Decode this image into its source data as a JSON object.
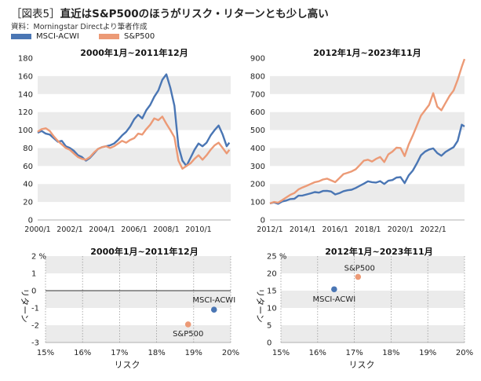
{
  "header": {
    "figure_tag": "［図表5］",
    "title": "直近はS&P500のほうがリスク・リターンとも少し高い",
    "source": "資料：Morningstar Directより筆者作成"
  },
  "legend": [
    {
      "name": "MSCI-ACWI",
      "color": "#4a76b4"
    },
    {
      "name": "S&P500",
      "color": "#ec9a76"
    }
  ],
  "chart_data": [
    {
      "type": "line",
      "title": "2000年1月~2011年12月",
      "ylim": [
        0,
        180
      ],
      "yticks": [
        "0",
        "20",
        "40",
        "60",
        "80",
        "100",
        "120",
        "140",
        "160",
        "180"
      ],
      "xlim": [
        0,
        144
      ],
      "xticks": [
        {
          "label": "2000/1",
          "x": 0
        },
        {
          "label": "2002/1",
          "x": 24
        },
        {
          "label": "2004/1",
          "x": 48
        },
        {
          "label": "2006/1",
          "x": 72
        },
        {
          "label": "2008/1",
          "x": 96
        },
        {
          "label": "2010/1",
          "x": 120
        }
      ],
      "series": [
        {
          "name": "MSCI-ACWI",
          "color": "#4a76b4",
          "x": [
            0,
            3,
            6,
            9,
            12,
            15,
            18,
            21,
            24,
            27,
            30,
            33,
            36,
            39,
            42,
            45,
            48,
            51,
            54,
            57,
            60,
            63,
            66,
            69,
            72,
            75,
            78,
            81,
            84,
            87,
            90,
            93,
            96,
            99,
            102,
            105,
            108,
            111,
            114,
            117,
            120,
            123,
            126,
            129,
            132,
            135,
            138,
            141,
            143
          ],
          "values": [
            97,
            99,
            96,
            95,
            91,
            87,
            88,
            82,
            80,
            77,
            72,
            70,
            66,
            69,
            74,
            79,
            81,
            82,
            83,
            85,
            89,
            94,
            98,
            104,
            112,
            117,
            113,
            122,
            128,
            137,
            144,
            156,
            162,
            147,
            127,
            82,
            66,
            60,
            69,
            78,
            85,
            82,
            86,
            94,
            100,
            105,
            95,
            82,
            86
          ]
        },
        {
          "name": "S&P500",
          "color": "#ec9a76",
          "x": [
            0,
            3,
            6,
            9,
            12,
            15,
            18,
            21,
            24,
            27,
            30,
            33,
            36,
            39,
            42,
            45,
            48,
            51,
            54,
            57,
            60,
            63,
            66,
            69,
            72,
            75,
            78,
            81,
            84,
            87,
            90,
            93,
            96,
            99,
            102,
            105,
            108,
            111,
            114,
            117,
            120,
            123,
            126,
            129,
            132,
            135,
            138,
            141,
            143
          ],
          "values": [
            98,
            101,
            102,
            99,
            93,
            88,
            84,
            80,
            78,
            74,
            70,
            68,
            67,
            70,
            75,
            79,
            81,
            82,
            80,
            82,
            85,
            88,
            86,
            89,
            91,
            96,
            95,
            101,
            106,
            113,
            111,
            115,
            107,
            100,
            92,
            66,
            57,
            60,
            63,
            68,
            72,
            67,
            72,
            78,
            83,
            86,
            80,
            74,
            78
          ]
        }
      ]
    },
    {
      "type": "line",
      "title": "2012年1月~2023年11月",
      "ylim": [
        0,
        900
      ],
      "yticks": [
        "0",
        "100",
        "200",
        "300",
        "400",
        "500",
        "600",
        "700",
        "800",
        "900"
      ],
      "xlim": [
        0,
        143
      ],
      "xticks": [
        {
          "label": "2012/1",
          "x": 0
        },
        {
          "label": "2014/1",
          "x": 24
        },
        {
          "label": "2016/1",
          "x": 48
        },
        {
          "label": "2018/1",
          "x": 72
        },
        {
          "label": "2020/1",
          "x": 96
        },
        {
          "label": "2022/1",
          "x": 120
        }
      ],
      "series": [
        {
          "name": "MSCI-ACWI",
          "color": "#4a76b4",
          "x": [
            0,
            3,
            6,
            9,
            12,
            15,
            18,
            21,
            24,
            27,
            30,
            33,
            36,
            39,
            42,
            45,
            48,
            51,
            54,
            57,
            60,
            63,
            66,
            69,
            72,
            75,
            78,
            81,
            84,
            87,
            90,
            93,
            96,
            99,
            102,
            105,
            108,
            111,
            114,
            117,
            120,
            123,
            126,
            129,
            132,
            135,
            138,
            141,
            143
          ],
          "values": [
            92,
            98,
            90,
            103,
            108,
            116,
            118,
            135,
            136,
            142,
            148,
            155,
            152,
            161,
            162,
            158,
            142,
            149,
            160,
            165,
            168,
            178,
            190,
            202,
            215,
            210,
            208,
            216,
            200,
            218,
            222,
            236,
            238,
            205,
            248,
            275,
            315,
            360,
            380,
            392,
            398,
            372,
            357,
            378,
            392,
            405,
            440,
            530,
            520
          ]
        },
        {
          "name": "S&P500",
          "color": "#ec9a76",
          "x": [
            0,
            3,
            6,
            9,
            12,
            15,
            18,
            21,
            24,
            27,
            30,
            33,
            36,
            39,
            42,
            45,
            48,
            51,
            54,
            57,
            60,
            63,
            66,
            69,
            72,
            75,
            78,
            81,
            84,
            87,
            90,
            93,
            96,
            99,
            102,
            105,
            108,
            111,
            114,
            117,
            120,
            123,
            126,
            129,
            132,
            135,
            138,
            141,
            143
          ],
          "values": [
            92,
            100,
            96,
            110,
            125,
            140,
            150,
            170,
            181,
            190,
            200,
            210,
            215,
            225,
            230,
            220,
            210,
            232,
            255,
            262,
            270,
            282,
            305,
            330,
            335,
            325,
            340,
            350,
            322,
            365,
            380,
            402,
            400,
            355,
            420,
            470,
            525,
            580,
            610,
            640,
            705,
            630,
            610,
            650,
            690,
            720,
            780,
            852,
            895
          ]
        }
      ]
    },
    {
      "type": "scatter",
      "title": "2000年1月~2011年12月",
      "xlabel": "リスク",
      "ylabel": "リターン",
      "xlim": [
        15,
        20
      ],
      "ylim": [
        -3,
        2
      ],
      "xticks": [
        "15%",
        "16%",
        "17%",
        "18%",
        "19%",
        "20%"
      ],
      "yticks": [
        "-3",
        "-2",
        "-1",
        "0",
        "1",
        "2 %"
      ],
      "points": [
        {
          "name": "MSCI-ACWI",
          "x": 19.55,
          "y": -1.1,
          "color": "#4a76b4"
        },
        {
          "name": "S&P500",
          "x": 18.85,
          "y": -1.95,
          "color": "#ec9a76"
        }
      ]
    },
    {
      "type": "scatter",
      "title": "2012年1月~2023年11月",
      "xlabel": "リスク",
      "ylabel": "リターン",
      "xlim": [
        15,
        20
      ],
      "ylim": [
        0,
        25
      ],
      "xticks": [
        "15%",
        "16%",
        "17%",
        "18%",
        "19%",
        "20%"
      ],
      "yticks": [
        "0",
        "5",
        "10",
        "15",
        "20",
        "25 %"
      ],
      "points": [
        {
          "name": "MSCI-ACWI",
          "x": 16.45,
          "y": 15.4,
          "color": "#4a76b4"
        },
        {
          "name": "S&P500",
          "x": 17.1,
          "y": 19.0,
          "color": "#ec9a76"
        }
      ]
    }
  ]
}
